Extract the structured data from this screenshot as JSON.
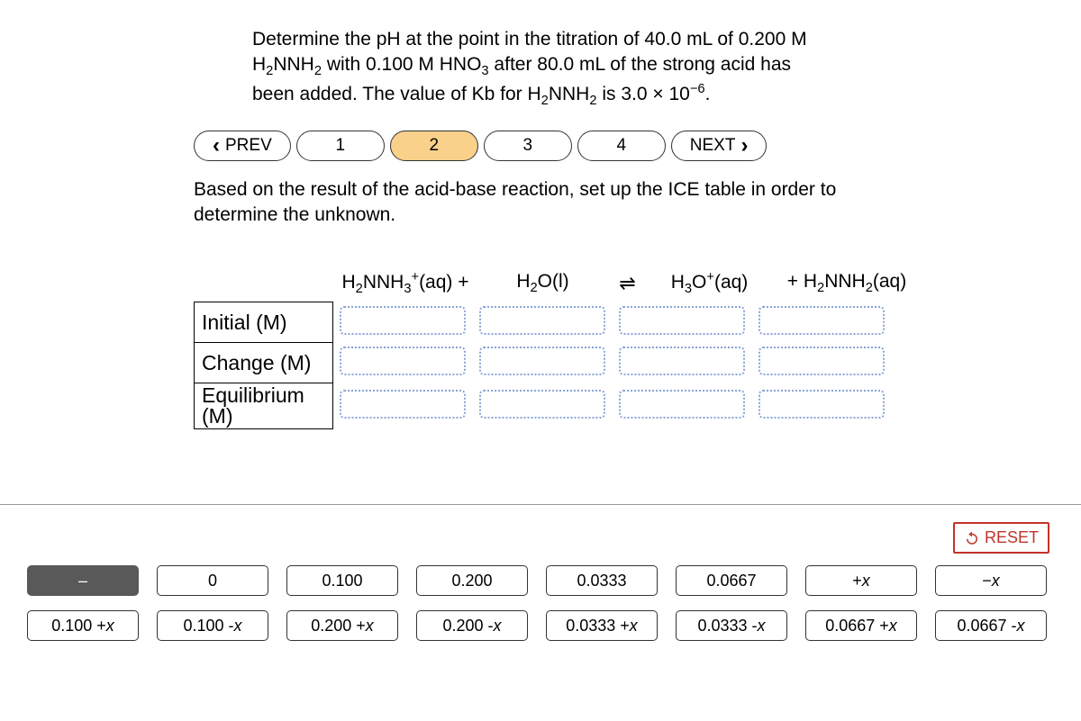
{
  "question_html": "Determine the pH at the point in the titration of 40.0 mL of 0.200 M H<sub>2</sub>NNH<sub>2</sub> with 0.100 M HNO<sub>3</sub> after 80.0 mL of the strong acid has been added. The value of Kb for H<sub>2</sub>NNH<sub>2</sub> is 3.0 × 10<sup>−6</sup>.",
  "nav": {
    "prev": "PREV",
    "next": "NEXT",
    "steps": [
      "1",
      "2",
      "3",
      "4"
    ],
    "active_index": 1
  },
  "instruction": "Based on the result of the acid-base reaction, set up the ICE table in order to determine the unknown.",
  "ice": {
    "headers": {
      "c1_html": "H<sub>2</sub>NNH<sub>3</sub><sup>+</sup>(aq) +",
      "c2_html": "H<sub>2</sub>O(l)",
      "eq": "⇌",
      "c3_html": "H<sub>3</sub>O<sup>+</sup>(aq)",
      "c4_html": "+ H<sub>2</sub>NNH<sub>2</sub>(aq)"
    },
    "rows": [
      {
        "label": "Initial (M)"
      },
      {
        "label": "Change (M)"
      },
      {
        "label": "Equilibrium (M)"
      }
    ],
    "drop_border_color": "#8aa3d8"
  },
  "reset_label": "RESET",
  "tiles": {
    "row1": [
      {
        "html": "–",
        "selected": true
      },
      {
        "html": "0"
      },
      {
        "html": "0.100"
      },
      {
        "html": "0.200"
      },
      {
        "html": "0.0333"
      },
      {
        "html": "0.0667"
      },
      {
        "html": "+<span class='xi'>x</span>"
      },
      {
        "html": "−<span class='xi'>x</span>"
      }
    ],
    "row2": [
      {
        "html": "0.100 + <span class='xi'>x</span>"
      },
      {
        "html": "0.100 - <span class='xi'>x</span>"
      },
      {
        "html": "0.200 + <span class='xi'>x</span>"
      },
      {
        "html": "0.200 - <span class='xi'>x</span>"
      },
      {
        "html": "0.0333 + <span class='xi'>x</span>"
      },
      {
        "html": "0.0333 - <span class='xi'>x</span>"
      },
      {
        "html": "0.0667 + <span class='xi'>x</span>"
      },
      {
        "html": "0.0667 - <span class='xi'>x</span>"
      }
    ]
  },
  "colors": {
    "active_step_bg": "#f9d18b",
    "reset_color": "#c1342a",
    "selected_tile_bg": "#595959"
  }
}
